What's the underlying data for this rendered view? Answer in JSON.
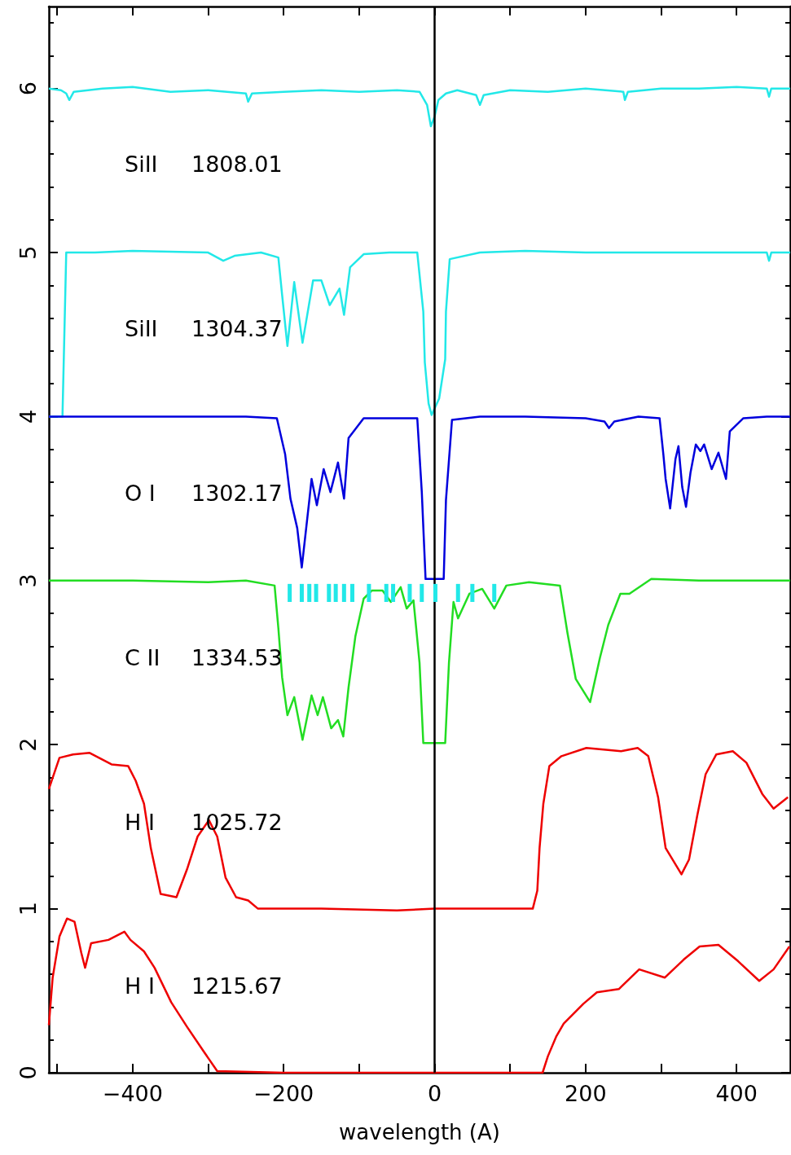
{
  "chart_data": {
    "type": "line",
    "xlabel": "wavelength (A)",
    "xlim": [
      -511,
      471
    ],
    "ylim": [
      0,
      6.5
    ],
    "xticks": [
      {
        "value": -500,
        "label": null
      },
      {
        "value": -400,
        "label": "−400"
      },
      {
        "value": -300,
        "label": null
      },
      {
        "value": -200,
        "label": "−200"
      },
      {
        "value": -100,
        "label": null
      },
      0,
      {
        "value": 100,
        "label": null
      },
      200,
      {
        "value": 300,
        "label": null
      },
      400
    ],
    "yticks": [
      0,
      1,
      2,
      3,
      4,
      5,
      6
    ],
    "ref_lines": [
      {
        "axis": "x",
        "value": 0,
        "color": "#000000"
      }
    ],
    "series": [
      {
        "color": "#22e8e8",
        "x": [
          -511,
          -495,
          -488,
          -484,
          -478,
          -440,
          -400,
          -350,
          -300,
          -250,
          -247,
          -242,
          -200,
          -150,
          -100,
          -50,
          -20,
          -10,
          -5,
          0,
          5,
          15,
          30,
          55,
          60,
          65,
          100,
          150,
          200,
          250,
          252,
          256,
          300,
          350,
          400,
          440,
          443,
          446,
          471
        ],
        "values": [
          6.0,
          5.99,
          5.97,
          5.93,
          5.98,
          6.0,
          6.01,
          5.98,
          5.99,
          5.97,
          5.92,
          5.97,
          5.98,
          5.99,
          5.98,
          5.99,
          5.98,
          5.9,
          5.77,
          5.83,
          5.93,
          5.97,
          5.99,
          5.96,
          5.9,
          5.96,
          5.99,
          5.98,
          6.0,
          5.98,
          5.93,
          5.98,
          6.0,
          6.0,
          6.01,
          6.0,
          5.95,
          6.0,
          6.0
        ]
      },
      {
        "color": "#22e8e8",
        "x": [
          -511,
          -493,
          -488,
          -450,
          -400,
          -300,
          -280,
          -265,
          -230,
          -207,
          -202,
          -195,
          -186,
          -175,
          -161,
          -150,
          -139,
          -126,
          -120,
          -112,
          -94,
          -60,
          -23,
          -15,
          -13,
          -8,
          -4,
          6,
          14,
          15,
          20,
          60,
          120,
          200,
          300,
          400,
          440,
          443,
          446,
          471
        ],
        "values": [
          4.0,
          4.0,
          5.0,
          5.0,
          5.01,
          5.0,
          4.95,
          4.98,
          5.0,
          4.97,
          4.74,
          4.43,
          4.82,
          4.45,
          4.83,
          4.83,
          4.68,
          4.78,
          4.62,
          4.91,
          4.99,
          5.0,
          5.0,
          4.64,
          4.33,
          4.08,
          4.01,
          4.11,
          4.35,
          4.64,
          4.96,
          5.0,
          5.01,
          5.0,
          5.0,
          5.0,
          5.0,
          4.95,
          5.0,
          5.0
        ]
      },
      {
        "color": "#0000dd",
        "x": [
          -511,
          -450,
          -400,
          -300,
          -250,
          -209,
          -198,
          -191,
          -182,
          -176,
          -166,
          -163,
          -156,
          -147,
          -138,
          -128,
          -120,
          -114,
          -94,
          -60,
          -23,
          -17,
          -12,
          12,
          15,
          23,
          60,
          120,
          200,
          225,
          231,
          238,
          270,
          298,
          303,
          306,
          312,
          319,
          323,
          328,
          333,
          339,
          346,
          352,
          357,
          367,
          376,
          386,
          391,
          409,
          440,
          471
        ],
        "values": [
          4.0,
          4.0,
          4.0,
          4.0,
          4.0,
          3.99,
          3.77,
          3.5,
          3.32,
          3.08,
          3.49,
          3.62,
          3.46,
          3.68,
          3.54,
          3.72,
          3.5,
          3.87,
          3.99,
          3.99,
          3.99,
          3.54,
          3.01,
          3.01,
          3.49,
          3.98,
          4.0,
          4.0,
          3.99,
          3.97,
          3.93,
          3.97,
          4.0,
          3.99,
          3.77,
          3.62,
          3.44,
          3.74,
          3.82,
          3.57,
          3.45,
          3.66,
          3.83,
          3.79,
          3.83,
          3.68,
          3.78,
          3.62,
          3.91,
          3.99,
          4.0,
          4.0
        ]
      },
      {
        "color": "#22dd22",
        "x": [
          -511,
          -450,
          -400,
          -300,
          -250,
          -212,
          -207,
          -202,
          -195,
          -186,
          -175,
          -163,
          -155,
          -148,
          -137,
          -128,
          -121,
          -114,
          -105,
          -94,
          -83,
          -69,
          -58,
          -45,
          -37,
          -28,
          -20,
          -15,
          14,
          19,
          25,
          31,
          46,
          63,
          79,
          95,
          125,
          166,
          176,
          187,
          206,
          219,
          230,
          246,
          258,
          287,
          350,
          400,
          471
        ],
        "values": [
          3.0,
          3.0,
          3.0,
          2.99,
          3.0,
          2.97,
          2.71,
          2.41,
          2.18,
          2.29,
          2.03,
          2.3,
          2.18,
          2.29,
          2.1,
          2.15,
          2.05,
          2.35,
          2.66,
          2.89,
          2.94,
          2.94,
          2.87,
          2.96,
          2.83,
          2.88,
          2.5,
          2.01,
          2.01,
          2.5,
          2.87,
          2.77,
          2.92,
          2.95,
          2.83,
          2.97,
          2.99,
          2.97,
          2.68,
          2.4,
          2.26,
          2.53,
          2.73,
          2.92,
          2.92,
          3.01,
          3.0,
          3.0,
          3.0
        ]
      },
      {
        "color": "#ee0000",
        "x": [
          -511,
          -497,
          -479,
          -457,
          -428,
          -406,
          -396,
          -385,
          -376,
          -363,
          -342,
          -328,
          -314,
          -299,
          -288,
          -277,
          -263,
          -247,
          -234,
          -150,
          -50,
          0,
          50,
          130,
          136,
          139,
          144,
          152,
          168,
          201,
          247,
          269,
          283,
          296,
          306,
          327,
          337,
          348,
          359,
          373,
          395,
          413,
          434,
          449,
          468
        ],
        "values": [
          1.73,
          1.92,
          1.94,
          1.95,
          1.88,
          1.87,
          1.78,
          1.64,
          1.37,
          1.09,
          1.07,
          1.24,
          1.44,
          1.54,
          1.44,
          1.19,
          1.07,
          1.05,
          1.0,
          1.0,
          0.99,
          1.0,
          1.0,
          1.0,
          1.11,
          1.37,
          1.64,
          1.87,
          1.93,
          1.98,
          1.96,
          1.98,
          1.93,
          1.68,
          1.37,
          1.21,
          1.3,
          1.57,
          1.82,
          1.94,
          1.96,
          1.89,
          1.7,
          1.61,
          1.68
        ]
      },
      {
        "color": "#ee0000",
        "x": [
          -511,
          -506,
          -497,
          -487,
          -477,
          -468,
          -463,
          -455,
          -432,
          -411,
          -403,
          -385,
          -371,
          -349,
          -328,
          -306,
          -288,
          -200,
          -100,
          0,
          100,
          143,
          150,
          161,
          171,
          197,
          215,
          244,
          271,
          305,
          330,
          351,
          376,
          402,
          430,
          449,
          470
        ],
        "values": [
          0.29,
          0.58,
          0.83,
          0.94,
          0.92,
          0.73,
          0.64,
          0.79,
          0.81,
          0.86,
          0.81,
          0.74,
          0.64,
          0.43,
          0.28,
          0.13,
          0.01,
          0.0,
          0.0,
          0.0,
          0.0,
          0.0,
          0.1,
          0.22,
          0.3,
          0.42,
          0.49,
          0.51,
          0.63,
          0.58,
          0.69,
          0.77,
          0.78,
          0.68,
          0.56,
          0.63,
          0.77
        ]
      },
      {
        "type": "bar",
        "color": "#22e8e8",
        "x": [
          -192,
          -176,
          -166,
          -157,
          -140,
          -131,
          -120,
          -109,
          -87,
          -64,
          -55,
          -33,
          -17,
          1,
          31,
          50,
          79
        ],
        "values": [
          0.11,
          0.11,
          0.11,
          0.11,
          0.11,
          0.11,
          0.11,
          0.11,
          0.11,
          0.11,
          0.11,
          0.11,
          0.11,
          0.11,
          0.11,
          0.11,
          0.11
        ],
        "base": [
          2.87,
          2.87,
          2.87,
          2.87,
          2.87,
          2.87,
          2.87,
          2.87,
          2.87,
          2.87,
          2.87,
          2.87,
          2.87,
          2.87,
          2.87,
          2.87,
          2.87
        ]
      }
    ],
    "annotations": [
      "SiII",
      "1808.01",
      "SiII",
      "1304.37",
      "O I",
      "1302.17",
      "C II",
      "1334.53",
      "H I",
      "1025.72",
      "H I",
      "1215.67"
    ]
  }
}
